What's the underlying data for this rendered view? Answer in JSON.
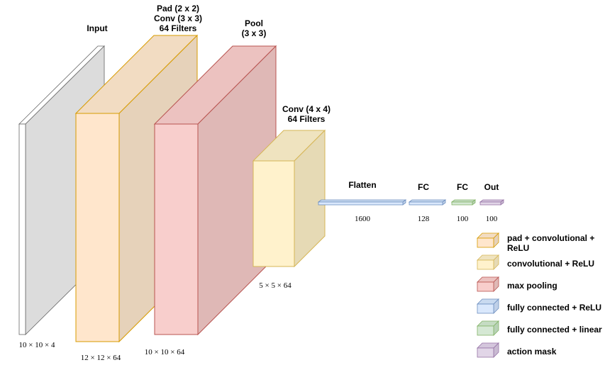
{
  "colors": {
    "input": {
      "front": "#ffffff",
      "top": "#ffffff",
      "side": "#dcdcdc",
      "stroke": "#666666"
    },
    "pad_conv": {
      "front": "#ffe6cc",
      "top": "#f2dcc2",
      "side": "#e6d2ba",
      "stroke": "#d79b00"
    },
    "pool": {
      "front": "#f8cecc",
      "top": "#ecc2c0",
      "side": "#dfb8b6",
      "stroke": "#b85450"
    },
    "conv": {
      "front": "#fff2cc",
      "top": "#efe3bf",
      "side": "#e6dab5",
      "stroke": "#d6b656"
    },
    "fc_relu": {
      "front": "#dae8fc",
      "top": "#c9daf0",
      "side": "#bfd0e8",
      "stroke": "#6c8ebf"
    },
    "fc_linear": {
      "front": "#d5e8d4",
      "top": "#c5dcc3",
      "side": "#b8d2b6",
      "stroke": "#82b366"
    },
    "action_mask": {
      "front": "#e1d5e7",
      "top": "#d4c6dc",
      "side": "#c9bad2",
      "stroke": "#9673a6"
    }
  },
  "layers": {
    "input": {
      "title": "Input",
      "dims": "10 × 10 × 4"
    },
    "pad_conv": {
      "title_lines": [
        "Pad (2 x 2)",
        "Conv (3 x 3)",
        "64 Filters"
      ],
      "dims": "12 × 12 × 64"
    },
    "pool": {
      "title_lines": [
        "Pool",
        "(3 x 3)"
      ],
      "dims": "10 × 10 × 64"
    },
    "conv": {
      "title_lines": [
        "Conv (4 x 4)",
        "64 Filters"
      ],
      "dims": "5 × 5 × 64"
    },
    "flatten": {
      "title": "Flatten",
      "size": "1600"
    },
    "fc1": {
      "title": "FC",
      "size": "128"
    },
    "fc2": {
      "title": "FC",
      "size": "100"
    },
    "out": {
      "title": "Out",
      "size": "100"
    }
  },
  "legend": {
    "items": [
      {
        "key": "pad_conv",
        "label_lines": [
          "pad + convolutional +",
          "ReLU"
        ]
      },
      {
        "key": "conv",
        "label_lines": [
          "convolutional + ReLU"
        ]
      },
      {
        "key": "pool",
        "label_lines": [
          "max pooling"
        ]
      },
      {
        "key": "fc_relu",
        "label_lines": [
          "fully connected + ReLU"
        ]
      },
      {
        "key": "fc_linear",
        "label_lines": [
          "fully connected + linear"
        ]
      },
      {
        "key": "action_mask",
        "label_lines": [
          "action mask"
        ]
      }
    ]
  }
}
